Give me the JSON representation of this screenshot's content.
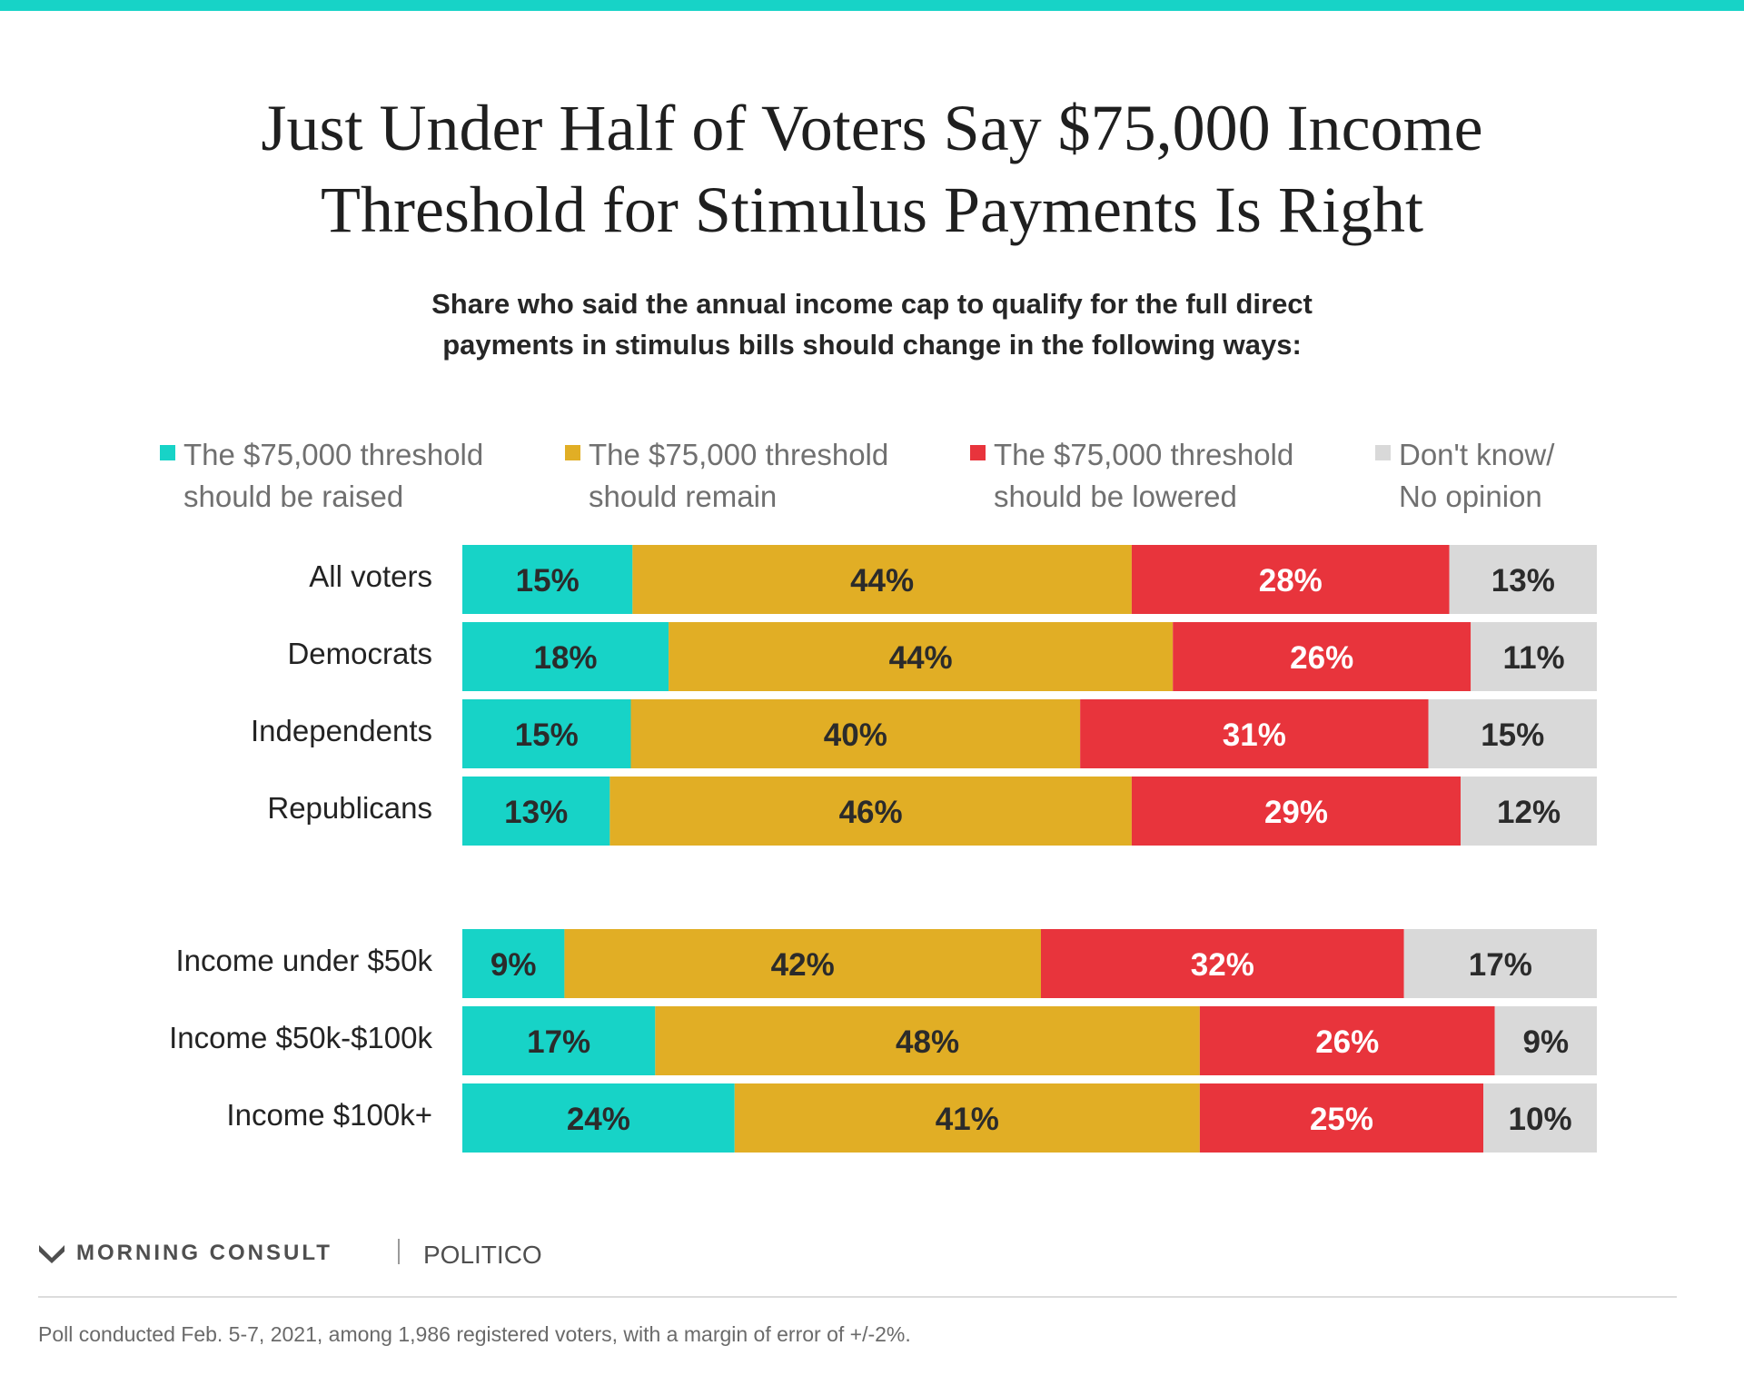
{
  "title_lines": [
    "Just Under Half of Voters Say $75,000 Income",
    "Threshold for Stimulus Payments Is Right"
  ],
  "subtitle_lines": [
    "Share who said the annual income cap to qualify for the full direct",
    "payments in stimulus bills should change in the following ways:"
  ],
  "brand": {
    "morning_consult": "MORNING CONSULT",
    "politico": "POLITICO"
  },
  "footnote": "Poll conducted Feb. 5-7, 2021, among 1,986 registered voters, with a margin of error of +/-2%.",
  "chart_data": {
    "type": "bar",
    "orientation": "horizontal-stacked-100",
    "title": "Just Under Half of Voters Say $75,000 Income Threshold for Stimulus Payments Is Right",
    "subtitle": "Share who said the annual income cap to qualify for the full direct payments in stimulus bills should change in the following ways:",
    "xlim": [
      0,
      100
    ],
    "grid": false,
    "legend_position": "top",
    "categories": [
      "All voters",
      "Democrats",
      "Independents",
      "Republicans",
      "Income under $50k",
      "Income $50k-$100k",
      "Income $100k+"
    ],
    "groups": [
      [
        0,
        1,
        2,
        3
      ],
      [
        4,
        5,
        6
      ]
    ],
    "series": [
      {
        "name_lines": [
          "The $75,000 threshold",
          "should be raised"
        ],
        "color": "#17d3c7",
        "label_color": "#2b2b2b",
        "values": [
          15,
          18,
          15,
          13,
          9,
          17,
          24
        ],
        "labels": [
          "15%",
          "18%",
          "15%",
          "13%",
          "9%",
          "17%",
          "24%"
        ]
      },
      {
        "name_lines": [
          "The $75,000 threshold",
          "should remain"
        ],
        "color": "#e1ae25",
        "label_color": "#2b2b2b",
        "values": [
          44,
          44,
          40,
          46,
          42,
          48,
          41
        ],
        "labels": [
          "44%",
          "44%",
          "40%",
          "46%",
          "42%",
          "48%",
          "41%"
        ]
      },
      {
        "name_lines": [
          "The $75,000 threshold",
          "should be lowered"
        ],
        "color": "#e8343c",
        "label_color": "#ffffff",
        "values": [
          28,
          26,
          31,
          29,
          32,
          26,
          25
        ],
        "labels": [
          "28%",
          "26%",
          "31%",
          "29%",
          "32%",
          "26%",
          "25%"
        ]
      },
      {
        "name_lines": [
          "Don't know/",
          "No opinion"
        ],
        "color": "#d9d9d9",
        "label_color": "#2b2b2b",
        "values": [
          13,
          11,
          15,
          12,
          17,
          9,
          10
        ],
        "labels": [
          "13%",
          "11%",
          "15%",
          "12%",
          "17%",
          "9%",
          "10%"
        ]
      }
    ]
  }
}
